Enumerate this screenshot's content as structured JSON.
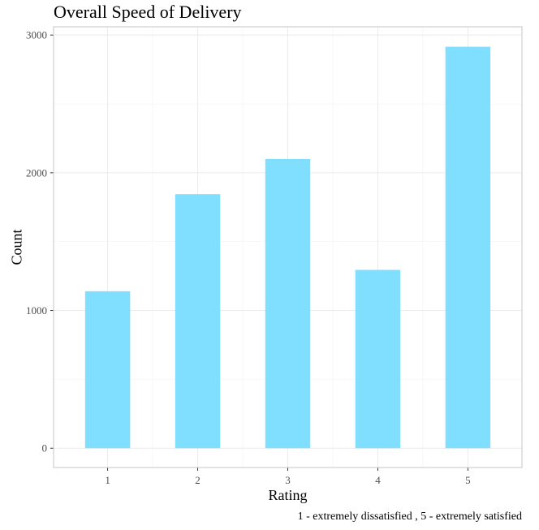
{
  "chart_data": {
    "type": "bar",
    "title": "Overall Speed of Delivery",
    "xlabel": "Rating",
    "ylabel": "Count",
    "caption": "1 - extremely dissatisfied , 5 - extremely satisfied",
    "categories": [
      "1",
      "2",
      "3",
      "4",
      "5"
    ],
    "values": [
      1140,
      1845,
      2100,
      1295,
      2915
    ],
    "ylim": [
      -140,
      3060
    ],
    "yticks": [
      0,
      1000,
      2000,
      3000
    ],
    "grid": true,
    "bar_color": "#80dfff",
    "legend": "none"
  }
}
